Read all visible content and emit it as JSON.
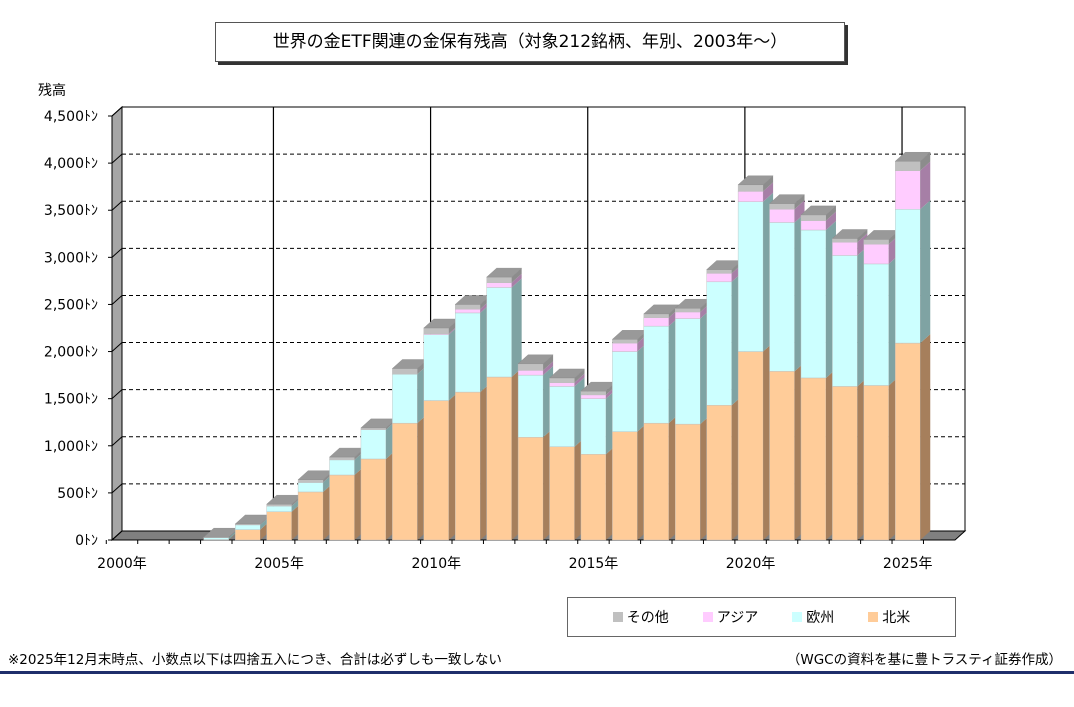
{
  "chart_data": {
    "type": "bar",
    "stacked": true,
    "three_d": true,
    "title": "世界の金ETF関連の金保有残高（対象212銘柄、年別、2003年～）",
    "ylabel": "残高",
    "y_unit": "トン",
    "ylim": [
      0,
      4500
    ],
    "yticks": [
      0,
      500,
      1000,
      1500,
      2000,
      2500,
      3000,
      3500,
      4000,
      4500
    ],
    "ytick_labels": [
      "0ﾄﾝ",
      "500ﾄﾝ",
      "1,000ﾄﾝ",
      "1,500ﾄﾝ",
      "2,000ﾄﾝ",
      "2,500ﾄﾝ",
      "3,000ﾄﾝ",
      "3,500ﾄﾝ",
      "4,000ﾄﾝ",
      "4,500ﾄﾝ"
    ],
    "grid": true,
    "legend_position": "bottom-right",
    "categories": [
      "2000",
      "2001",
      "2002",
      "2003",
      "2004",
      "2005",
      "2006",
      "2007",
      "2008",
      "2009",
      "2010",
      "2011",
      "2012",
      "2013",
      "2014",
      "2015",
      "2016",
      "2017",
      "2018",
      "2019",
      "2020",
      "2021",
      "2022",
      "2023",
      "2024",
      "2025"
    ],
    "xtick_labels": [
      "2000年",
      "2005年",
      "2010年",
      "2015年",
      "2020年",
      "2025年"
    ],
    "series": [
      {
        "name": "北米",
        "color": "#ffcc99",
        "values": [
          0,
          0,
          0,
          5,
          110,
          300,
          510,
          690,
          860,
          1240,
          1480,
          1570,
          1730,
          1090,
          990,
          910,
          1150,
          1240,
          1230,
          1430,
          2000,
          1790,
          1720,
          1630,
          1640,
          2090
        ]
      },
      {
        "name": "欧州",
        "color": "#ccffff",
        "values": [
          0,
          0,
          0,
          20,
          50,
          60,
          100,
          160,
          310,
          520,
          700,
          840,
          950,
          660,
          640,
          590,
          850,
          1030,
          1120,
          1310,
          1590,
          1580,
          1570,
          1390,
          1290,
          1420
        ]
      },
      {
        "name": "アジア",
        "color": "#ffccff",
        "values": [
          0,
          0,
          0,
          0,
          0,
          0,
          0,
          0,
          0,
          0,
          10,
          40,
          50,
          50,
          40,
          40,
          90,
          90,
          70,
          90,
          110,
          140,
          100,
          140,
          210,
          410
        ]
      },
      {
        "name": "その他",
        "color": "#c0c0c0",
        "values": [
          0,
          0,
          0,
          5,
          10,
          20,
          30,
          30,
          20,
          60,
          60,
          50,
          60,
          70,
          50,
          40,
          40,
          40,
          40,
          40,
          70,
          60,
          60,
          40,
          50,
          100
        ]
      }
    ],
    "legend_order": [
      "その他",
      "アジア",
      "欧州",
      "北米"
    ]
  },
  "footer": {
    "note": "※2025年12月末時点、小数点以下は四捨五入につき、合計は必ずしも一致しない",
    "source": "（WGCの資料を基に豊トラスティ証券作成）"
  }
}
